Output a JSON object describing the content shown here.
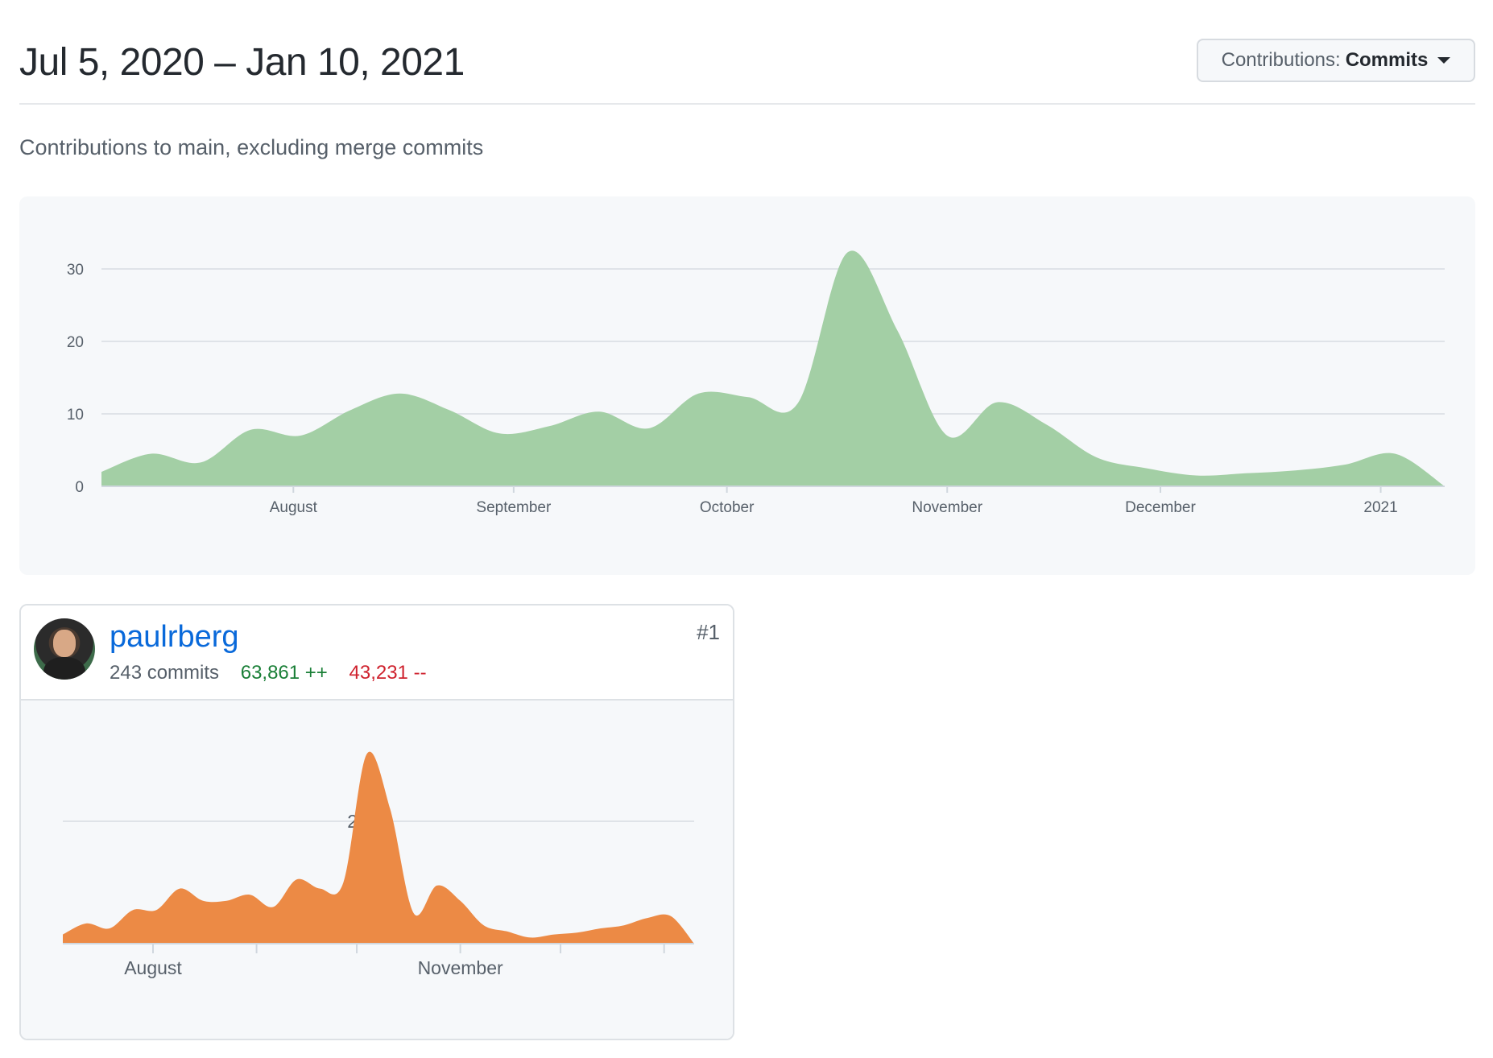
{
  "header": {
    "date_range": "Jul 5, 2020 – Jan 10, 2021",
    "contrib_label": "Contributions:",
    "contrib_value": "Commits"
  },
  "subtitle": "Contributions to main, excluding merge commits",
  "chart_data": [
    {
      "type": "area",
      "color": "#a3cfa5",
      "x": [
        "2020-07-05",
        "2020-07-12",
        "2020-07-19",
        "2020-07-26",
        "2020-08-02",
        "2020-08-09",
        "2020-08-16",
        "2020-08-23",
        "2020-08-30",
        "2020-09-06",
        "2020-09-13",
        "2020-09-20",
        "2020-09-27",
        "2020-10-04",
        "2020-10-11",
        "2020-10-18",
        "2020-10-25",
        "2020-11-01",
        "2020-11-08",
        "2020-11-15",
        "2020-11-22",
        "2020-11-29",
        "2020-12-06",
        "2020-12-13",
        "2020-12-20",
        "2020-12-27",
        "2021-01-03",
        "2021-01-10"
      ],
      "values": [
        2,
        4.5,
        3.3,
        7.8,
        7,
        10.5,
        12.8,
        10.5,
        7.3,
        8.3,
        10.3,
        8,
        12.8,
        12.3,
        11.5,
        32.3,
        21.5,
        7,
        11.6,
        8.5,
        4,
        2.5,
        1.5,
        1.8,
        2.2,
        3,
        4.5,
        0
      ],
      "yticks": [
        0,
        10,
        20,
        30
      ],
      "ylim": [
        0,
        34
      ],
      "xticks": [
        {
          "label": "August",
          "x": "2020-08-01"
        },
        {
          "label": "September",
          "x": "2020-09-01"
        },
        {
          "label": "October",
          "x": "2020-10-01"
        },
        {
          "label": "November",
          "x": "2020-11-01"
        },
        {
          "label": "December",
          "x": "2020-12-01"
        },
        {
          "label": "2021",
          "x": "2021-01-01"
        }
      ],
      "grid": true
    },
    {
      "type": "area",
      "color": "#ec8a45",
      "x": [
        "2020-07-05",
        "2020-07-12",
        "2020-07-19",
        "2020-07-26",
        "2020-08-02",
        "2020-08-09",
        "2020-08-16",
        "2020-08-23",
        "2020-08-30",
        "2020-09-06",
        "2020-09-13",
        "2020-09-20",
        "2020-09-27",
        "2020-10-04",
        "2020-10-11",
        "2020-10-18",
        "2020-10-25",
        "2020-11-01",
        "2020-11-08",
        "2020-11-15",
        "2020-11-22",
        "2020-11-29",
        "2020-12-06",
        "2020-12-13",
        "2020-12-20",
        "2020-12-27",
        "2021-01-03",
        "2021-01-10"
      ],
      "values": [
        1.5,
        3.3,
        2.5,
        5.5,
        5.5,
        9,
        7,
        7,
        8,
        6,
        10.5,
        9,
        10,
        31,
        22,
        5,
        9.5,
        7,
        3,
        2,
        1,
        1.5,
        1.8,
        2.5,
        3,
        4.2,
        4.5,
        0
      ],
      "yticks": [
        20
      ],
      "ylim": [
        0,
        32
      ],
      "xticks": [
        {
          "label": "August",
          "x": "2020-08-01"
        },
        {
          "label": "",
          "x": "2020-09-01"
        },
        {
          "label": "",
          "x": "2020-10-01"
        },
        {
          "label": "November",
          "x": "2020-11-01"
        },
        {
          "label": "",
          "x": "2020-12-01"
        },
        {
          "label": "",
          "x": "2021-01-01"
        }
      ],
      "grid": true
    }
  ],
  "contributor": {
    "username": "paulrberg",
    "commits": "243 commits",
    "additions": "63,861 ++",
    "deletions": "43,231 --",
    "rank": "#1"
  }
}
